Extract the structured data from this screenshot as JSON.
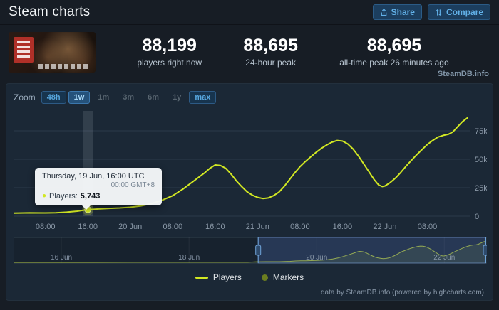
{
  "header": {
    "title": "Steam charts",
    "share_label": "Share",
    "compare_label": "Compare"
  },
  "stats": {
    "items": [
      {
        "value": "88,199",
        "label": "players right now"
      },
      {
        "value": "88,695",
        "label": "24-hour peak"
      },
      {
        "value": "88,695",
        "label": "all-time peak 26 minutes ago"
      }
    ],
    "watermark": "SteamDB.info"
  },
  "zoom": {
    "label": "Zoom",
    "options": [
      {
        "label": "48h",
        "style": "outlined"
      },
      {
        "label": "1w",
        "style": "selected"
      },
      {
        "label": "1m",
        "style": "plain"
      },
      {
        "label": "3m",
        "style": "plain"
      },
      {
        "label": "6m",
        "style": "plain"
      },
      {
        "label": "1y",
        "style": "plain"
      },
      {
        "label": "max",
        "style": "outlined"
      }
    ]
  },
  "tooltip": {
    "line1": "Thursday, 19 Jun, 16:00 UTC",
    "line2": "00:00 GMT+8",
    "series_label": "Players:",
    "value": "5,743"
  },
  "legend": [
    {
      "type": "line",
      "label": "Players",
      "color": "#d2e823"
    },
    {
      "type": "marker",
      "label": "Markers",
      "color": "#6b7d20"
    }
  ],
  "credits": "data by SteamDB.info (powered by highcharts.com)",
  "chart_data": {
    "type": "line",
    "series_name": "Players",
    "x_unit": "hours since 19 Jun 00:00 UTC",
    "y_unit": "thousands of players",
    "x_range": [
      2,
      88
    ],
    "ylim": [
      0,
      90
    ],
    "grid": true,
    "legend_position": "bottom-center",
    "yticks": [
      {
        "v": 0,
        "label": "0"
      },
      {
        "v": 25,
        "label": "25k"
      },
      {
        "v": 50,
        "label": "50k"
      },
      {
        "v": 75,
        "label": "75k"
      }
    ],
    "xticks": [
      {
        "hour": 8,
        "label": "08:00"
      },
      {
        "hour": 16,
        "label": "16:00"
      },
      {
        "hour": 24,
        "label": "20 Jun"
      },
      {
        "hour": 32,
        "label": "08:00"
      },
      {
        "hour": 40,
        "label": "16:00"
      },
      {
        "hour": 48,
        "label": "21 Jun"
      },
      {
        "hour": 56,
        "label": "08:00"
      },
      {
        "hour": 64,
        "label": "16:00"
      },
      {
        "hour": 72,
        "label": "22 Jun"
      },
      {
        "hour": 80,
        "label": "08:00"
      }
    ],
    "series_points": [
      [
        2,
        2.6
      ],
      [
        5,
        2.9
      ],
      [
        8,
        2.8
      ],
      [
        10,
        3.0
      ],
      [
        12,
        3.5
      ],
      [
        14,
        4.4
      ],
      [
        16,
        5.743
      ],
      [
        18,
        6.3
      ],
      [
        20,
        6.8
      ],
      [
        22,
        7.2
      ],
      [
        24,
        7.8
      ],
      [
        26,
        9
      ],
      [
        28,
        11
      ],
      [
        30,
        14
      ],
      [
        32,
        18
      ],
      [
        34,
        24
      ],
      [
        36,
        31
      ],
      [
        38,
        38
      ],
      [
        39,
        42
      ],
      [
        40,
        45
      ],
      [
        41,
        44.5
      ],
      [
        42,
        42
      ],
      [
        43,
        37
      ],
      [
        44,
        31
      ],
      [
        45,
        26
      ],
      [
        46,
        21.5
      ],
      [
        47,
        18.5
      ],
      [
        48,
        16.5
      ],
      [
        49,
        15.5
      ],
      [
        50,
        16
      ],
      [
        51,
        18
      ],
      [
        52,
        21
      ],
      [
        53,
        26
      ],
      [
        54,
        32
      ],
      [
        55,
        38
      ],
      [
        56,
        43.5
      ],
      [
        57,
        48
      ],
      [
        58,
        52
      ],
      [
        59,
        56
      ],
      [
        60,
        59.5
      ],
      [
        61,
        62.5
      ],
      [
        62,
        65
      ],
      [
        63,
        66.5
      ],
      [
        64,
        66
      ],
      [
        65,
        63.5
      ],
      [
        66,
        59
      ],
      [
        67,
        53
      ],
      [
        68,
        46
      ],
      [
        69,
        39
      ],
      [
        70,
        32
      ],
      [
        70.8,
        27.5
      ],
      [
        71.5,
        26
      ],
      [
        72,
        26.5
      ],
      [
        73,
        29.5
      ],
      [
        74,
        33.5
      ],
      [
        75,
        38.5
      ],
      [
        76,
        44
      ],
      [
        77,
        49
      ],
      [
        78,
        54
      ],
      [
        79,
        58.5
      ],
      [
        80,
        63
      ],
      [
        81,
        66.5
      ],
      [
        82,
        69.5
      ],
      [
        83,
        71
      ],
      [
        84,
        72
      ],
      [
        84.8,
        74
      ],
      [
        85.6,
        78
      ],
      [
        86.6,
        83
      ],
      [
        87.6,
        86.5
      ]
    ],
    "hover": {
      "hour": 16,
      "value": 5.743
    },
    "navigator": {
      "x_range": [
        -90,
        88
      ],
      "selection": [
        2,
        87.6
      ],
      "ticks": [
        {
          "hour": -72,
          "label": "16 Jun"
        },
        {
          "hour": -24,
          "label": "18 Jun"
        },
        {
          "hour": 24,
          "label": "20 Jun"
        },
        {
          "hour": 72,
          "label": "22 Jun"
        }
      ],
      "lead_in": [
        [
          -90,
          0.3
        ],
        [
          -75,
          0.35
        ],
        [
          -60,
          0.4
        ],
        [
          -45,
          0.5
        ],
        [
          -30,
          0.6
        ],
        [
          -20,
          0.7
        ],
        [
          -10,
          0.8
        ],
        [
          -2,
          1.0
        ]
      ]
    },
    "colors": {
      "line": "#d2e823",
      "grid": "#2b3a4a",
      "axis_text": "#8b99a8",
      "accent_blue": "#58a8e0",
      "marker_legend": "#6b7d20"
    }
  }
}
